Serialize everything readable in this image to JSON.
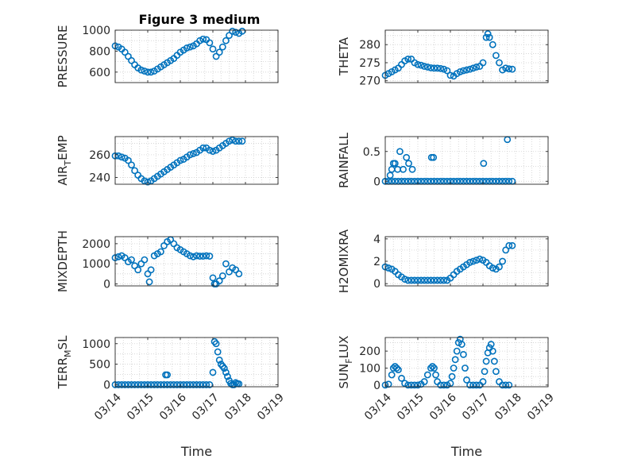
{
  "figure": {
    "title": "Figure 3 medium"
  },
  "colors": {
    "marker": "#0072BD",
    "axis": "#262626",
    "grid": "#d0d0d0"
  },
  "chart_data": [
    {
      "type": "scatter",
      "title": "Figure 3 medium",
      "ylabel": "PRESSURE",
      "ylim": [
        500,
        1000
      ],
      "yticks": [
        "600",
        "800",
        "1000"
      ],
      "ytick_values": [
        600,
        800,
        1000
      ],
      "xlim": [
        14,
        19
      ],
      "xticks": [
        "03/14",
        "03/15",
        "03/16",
        "03/17",
        "03/18",
        "03/19"
      ],
      "show_xticks": false,
      "grid": true,
      "x": [
        14.0,
        14.1,
        14.2,
        14.3,
        14.4,
        14.5,
        14.6,
        14.7,
        14.8,
        14.9,
        15.0,
        15.1,
        15.2,
        15.3,
        15.4,
        15.5,
        15.6,
        15.7,
        15.8,
        15.9,
        16.0,
        16.1,
        16.2,
        16.3,
        16.4,
        16.5,
        16.6,
        16.7,
        16.8,
        16.9,
        17.0,
        17.1,
        17.2,
        17.3,
        17.4,
        17.5,
        17.6,
        17.7,
        17.8,
        17.9
      ],
      "y": [
        850,
        840,
        820,
        790,
        750,
        710,
        670,
        640,
        620,
        610,
        600,
        600,
        610,
        630,
        650,
        670,
        690,
        710,
        730,
        760,
        790,
        810,
        830,
        840,
        850,
        870,
        900,
        915,
        910,
        880,
        820,
        750,
        790,
        840,
        900,
        950,
        990,
        980,
        970,
        990
      ]
    },
    {
      "type": "scatter",
      "ylabel": "THETA",
      "ylim": [
        269.5,
        284
      ],
      "yticks": [
        "270",
        "275",
        "280"
      ],
      "ytick_values": [
        270,
        275,
        280
      ],
      "xlim": [
        14,
        19
      ],
      "xticks": [
        "03/14",
        "03/15",
        "03/16",
        "03/17",
        "03/18",
        "03/19"
      ],
      "show_xticks": false,
      "grid": true,
      "x": [
        14.0,
        14.1,
        14.2,
        14.3,
        14.4,
        14.5,
        14.6,
        14.7,
        14.8,
        14.9,
        15.0,
        15.1,
        15.2,
        15.3,
        15.4,
        15.5,
        15.6,
        15.7,
        15.8,
        15.9,
        16.0,
        16.1,
        16.2,
        16.3,
        16.4,
        16.5,
        16.6,
        16.7,
        16.8,
        16.9,
        17.0,
        17.1,
        17.15,
        17.2,
        17.3,
        17.4,
        17.5,
        17.6,
        17.7,
        17.8,
        17.9
      ],
      "y": [
        271.5,
        272,
        272.5,
        273,
        273.5,
        274.5,
        275.5,
        276,
        276,
        275,
        274.5,
        274.3,
        274,
        273.8,
        273.6,
        273.5,
        273.5,
        273.4,
        273.2,
        272.8,
        271.5,
        271.3,
        272,
        272.5,
        272.8,
        273,
        273.2,
        273.5,
        273.8,
        274,
        275,
        282,
        283,
        282,
        280,
        277,
        275,
        273,
        273.5,
        273.3,
        273.2
      ]
    },
    {
      "type": "scatter",
      "ylabel": "AIR_TEMP",
      "ylim": [
        234,
        276
      ],
      "yticks": [
        "240",
        "260"
      ],
      "ytick_values": [
        240,
        260
      ],
      "xlim": [
        14,
        19
      ],
      "xticks": [
        "03/14",
        "03/15",
        "03/16",
        "03/17",
        "03/18",
        "03/19"
      ],
      "show_xticks": false,
      "grid": true,
      "x": [
        14.0,
        14.1,
        14.2,
        14.3,
        14.4,
        14.5,
        14.6,
        14.7,
        14.8,
        14.9,
        15.0,
        15.1,
        15.2,
        15.3,
        15.4,
        15.5,
        15.6,
        15.7,
        15.8,
        15.9,
        16.0,
        16.1,
        16.2,
        16.3,
        16.4,
        16.5,
        16.6,
        16.7,
        16.8,
        16.9,
        17.0,
        17.1,
        17.2,
        17.3,
        17.4,
        17.5,
        17.6,
        17.7,
        17.8,
        17.9
      ],
      "y": [
        259,
        259,
        258,
        257,
        255,
        251,
        246,
        242,
        239,
        237,
        236,
        237,
        239,
        241,
        243,
        245,
        247,
        249,
        251,
        253,
        255,
        256,
        258,
        260,
        261,
        262,
        264,
        266,
        266,
        264,
        263,
        264,
        266,
        268,
        270,
        272,
        273,
        272,
        272,
        272
      ]
    },
    {
      "type": "scatter",
      "ylabel": "RAINFALL",
      "ylim": [
        -0.05,
        0.75
      ],
      "yticks": [
        "0",
        "0.5"
      ],
      "ytick_values": [
        0,
        0.5
      ],
      "xlim": [
        14,
        19
      ],
      "xticks": [
        "03/14",
        "03/15",
        "03/16",
        "03/17",
        "03/18",
        "03/19"
      ],
      "show_xticks": false,
      "grid": true,
      "x": [
        14.0,
        14.1,
        14.2,
        14.3,
        14.4,
        14.5,
        14.6,
        14.7,
        14.8,
        14.9,
        15.0,
        15.1,
        15.2,
        15.3,
        15.4,
        15.5,
        15.6,
        15.7,
        15.8,
        15.9,
        16.0,
        16.1,
        16.2,
        16.3,
        16.4,
        16.5,
        16.6,
        16.7,
        16.8,
        16.9,
        17.0,
        17.1,
        17.2,
        17.3,
        17.4,
        17.5,
        17.6,
        17.7,
        17.8,
        17.9,
        14.15,
        14.2,
        14.25,
        14.3,
        14.38,
        14.45,
        14.55,
        14.65,
        14.72,
        14.83,
        15.42,
        15.48,
        17.02,
        17.75
      ],
      "y": [
        0,
        0,
        0,
        0,
        0,
        0,
        0,
        0,
        0,
        0,
        0,
        0,
        0,
        0,
        0,
        0,
        0,
        0,
        0,
        0,
        0,
        0,
        0,
        0,
        0,
        0,
        0,
        0,
        0,
        0,
        0,
        0,
        0,
        0,
        0,
        0,
        0,
        0,
        0,
        0,
        0.1,
        0.2,
        0.3,
        0.3,
        0.2,
        0.5,
        0.2,
        0.4,
        0.3,
        0.2,
        0.4,
        0.4,
        0.3,
        0.7
      ]
    },
    {
      "type": "scatter",
      "ylabel": "MIXDEPTH",
      "ylim": [
        -100,
        2350
      ],
      "yticks": [
        "0",
        "1000",
        "2000"
      ],
      "ytick_values": [
        0,
        1000,
        2000
      ],
      "xlim": [
        14,
        19
      ],
      "xticks": [
        "03/14",
        "03/15",
        "03/16",
        "03/17",
        "03/18",
        "03/19"
      ],
      "show_xticks": false,
      "grid": true,
      "x": [
        14.0,
        14.1,
        14.2,
        14.3,
        14.4,
        14.5,
        14.6,
        14.7,
        14.8,
        14.9,
        15.0,
        15.05,
        15.1,
        15.2,
        15.3,
        15.4,
        15.5,
        15.6,
        15.7,
        15.8,
        15.9,
        16.0,
        16.1,
        16.2,
        16.3,
        16.4,
        16.5,
        16.6,
        16.7,
        16.8,
        16.9,
        17.0,
        17.05,
        17.1,
        17.2,
        17.3,
        17.4,
        17.5,
        17.6,
        17.7,
        17.8
      ],
      "y": [
        1300,
        1350,
        1400,
        1300,
        1100,
        1200,
        900,
        700,
        1000,
        1200,
        500,
        100,
        700,
        1400,
        1500,
        1600,
        1900,
        2100,
        2200,
        2000,
        1800,
        1700,
        1600,
        1500,
        1400,
        1350,
        1400,
        1380,
        1380,
        1400,
        1380,
        300,
        0,
        0,
        150,
        400,
        1000,
        600,
        800,
        700,
        500
      ]
    },
    {
      "type": "scatter",
      "ylabel": "H2OMIXRA",
      "ylim": [
        -0.2,
        4.2
      ],
      "yticks": [
        "0",
        "2",
        "4"
      ],
      "ytick_values": [
        0,
        2,
        4
      ],
      "xlim": [
        14,
        19
      ],
      "xticks": [
        "03/14",
        "03/15",
        "03/16",
        "03/17",
        "03/18",
        "03/19"
      ],
      "show_xticks": false,
      "grid": true,
      "x": [
        14.0,
        14.1,
        14.2,
        14.3,
        14.4,
        14.5,
        14.6,
        14.7,
        14.8,
        14.9,
        15.0,
        15.1,
        15.2,
        15.3,
        15.4,
        15.5,
        15.6,
        15.7,
        15.8,
        15.9,
        16.0,
        16.1,
        16.2,
        16.3,
        16.4,
        16.5,
        16.6,
        16.7,
        16.8,
        16.9,
        17.0,
        17.1,
        17.2,
        17.3,
        17.4,
        17.5,
        17.6,
        17.7,
        17.8,
        17.9
      ],
      "y": [
        1.5,
        1.4,
        1.3,
        1.1,
        0.8,
        0.6,
        0.4,
        0.3,
        0.3,
        0.3,
        0.3,
        0.3,
        0.3,
        0.3,
        0.3,
        0.3,
        0.3,
        0.3,
        0.3,
        0.3,
        0.5,
        0.8,
        1.1,
        1.3,
        1.5,
        1.7,
        1.9,
        2.0,
        2.1,
        2.2,
        2.1,
        1.9,
        1.6,
        1.4,
        1.3,
        1.5,
        2.0,
        3.0,
        3.4,
        3.4
      ]
    },
    {
      "type": "scatter",
      "ylabel": "TERR_MSL",
      "ylim": [
        -50,
        1150
      ],
      "yticks": [
        "0",
        "500",
        "1000"
      ],
      "ytick_values": [
        0,
        500,
        1000
      ],
      "xlim": [
        14,
        19
      ],
      "xticks": [
        "03/14",
        "03/15",
        "03/16",
        "03/17",
        "03/18",
        "03/19"
      ],
      "show_xticks": true,
      "grid": true,
      "xlabel": "Time",
      "x": [
        14.0,
        14.1,
        14.2,
        14.3,
        14.4,
        14.5,
        14.6,
        14.7,
        14.8,
        14.9,
        15.0,
        15.1,
        15.2,
        15.3,
        15.4,
        15.5,
        15.6,
        15.7,
        15.8,
        15.9,
        16.0,
        16.1,
        16.2,
        16.3,
        16.4,
        16.5,
        16.6,
        16.7,
        16.8,
        16.9,
        15.55,
        15.6,
        17.0,
        17.05,
        17.1,
        17.15,
        17.2,
        17.25,
        17.3,
        17.35,
        17.4,
        17.45,
        17.5,
        17.55,
        17.6,
        17.65,
        17.7,
        17.75,
        17.8
      ],
      "y": [
        0,
        0,
        0,
        0,
        0,
        0,
        0,
        0,
        0,
        0,
        0,
        0,
        0,
        0,
        0,
        0,
        0,
        0,
        0,
        0,
        0,
        0,
        0,
        0,
        0,
        0,
        0,
        0,
        0,
        0,
        240,
        240,
        300,
        1050,
        1000,
        800,
        600,
        500,
        450,
        400,
        300,
        200,
        100,
        30,
        0,
        0,
        50,
        30,
        20
      ]
    },
    {
      "type": "scatter",
      "ylabel": "SUN_FLUX",
      "ylim": [
        -10,
        280
      ],
      "yticks": [
        "0",
        "100",
        "200"
      ],
      "ytick_values": [
        0,
        100,
        200
      ],
      "xlim": [
        14,
        19
      ],
      "xticks": [
        "03/14",
        "03/15",
        "03/16",
        "03/17",
        "03/18",
        "03/19"
      ],
      "show_xticks": true,
      "grid": true,
      "xlabel": "Time",
      "x": [
        14.0,
        14.1,
        14.2,
        14.25,
        14.3,
        14.35,
        14.4,
        14.5,
        14.6,
        14.7,
        14.8,
        14.9,
        15.0,
        15.1,
        15.2,
        15.3,
        15.4,
        15.45,
        15.5,
        15.55,
        15.6,
        15.7,
        15.8,
        15.9,
        16.0,
        16.05,
        16.1,
        16.15,
        16.2,
        16.25,
        16.3,
        16.35,
        16.4,
        16.45,
        16.5,
        16.6,
        16.7,
        16.8,
        16.9,
        17.0,
        17.05,
        17.1,
        17.15,
        17.2,
        17.25,
        17.3,
        17.35,
        17.4,
        17.5,
        17.6,
        17.7,
        17.8
      ],
      "y": [
        0,
        5,
        60,
        100,
        110,
        100,
        90,
        40,
        10,
        0,
        0,
        0,
        0,
        5,
        20,
        60,
        100,
        110,
        100,
        60,
        20,
        0,
        0,
        0,
        10,
        50,
        100,
        150,
        200,
        250,
        270,
        240,
        180,
        100,
        30,
        0,
        0,
        0,
        0,
        20,
        80,
        140,
        190,
        220,
        240,
        200,
        140,
        80,
        20,
        0,
        0,
        0
      ]
    }
  ]
}
